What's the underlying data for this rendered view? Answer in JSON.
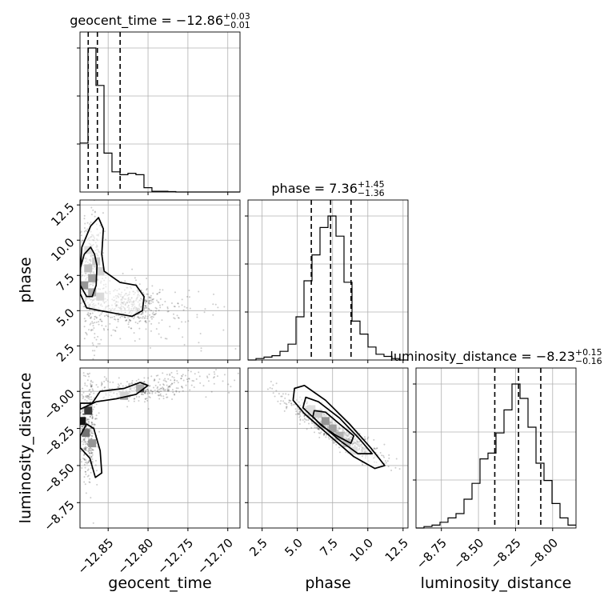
{
  "chart_data": {
    "type": "corner",
    "params": [
      "geocent_time",
      "phase",
      "luminosity_distance"
    ],
    "axes_labels": {
      "geocent_time": "geocent_time",
      "phase": "phase",
      "luminosity_distance": "luminosity_distance"
    },
    "ranges": {
      "geocent_time": [
        -12.8853,
        -12.6847
      ],
      "phase": [
        1.5,
        12.85
      ],
      "luminosity_distance": [
        -8.921,
        -7.8425
      ]
    },
    "ticks": {
      "geocent_time": [
        {
          "v": -12.85,
          "label": "−12.85"
        },
        {
          "v": -12.8,
          "label": "−12.80"
        },
        {
          "v": -12.75,
          "label": "−12.75"
        },
        {
          "v": -12.7,
          "label": "−12.70"
        }
      ],
      "phase": [
        {
          "v": 2.5,
          "label": "2.5"
        },
        {
          "v": 5.0,
          "label": "5.0"
        },
        {
          "v": 7.5,
          "label": "7.5"
        },
        {
          "v": 10.0,
          "label": "10.0"
        },
        {
          "v": 12.5,
          "label": "12.5"
        }
      ],
      "luminosity_distance": [
        {
          "v": -8.75,
          "label": "−8.75"
        },
        {
          "v": -8.5,
          "label": "−8.50"
        },
        {
          "v": -8.25,
          "label": "−8.25"
        },
        {
          "v": -8.0,
          "label": "−8.00"
        }
      ]
    },
    "titles": {
      "geocent_time": {
        "main": "geocent_time = −12.86",
        "sup": "+0.03",
        "sub": "−0.01"
      },
      "phase": {
        "main": "phase = 7.36",
        "sup": "+1.45",
        "sub": "−1.36"
      },
      "luminosity_distance": {
        "main": "luminosity_distance = −8.23",
        "sup": "+0.15",
        "sub": "−0.16"
      }
    },
    "quantiles": {
      "geocent_time": [
        -12.875,
        -12.8635,
        -12.835
      ],
      "phase": [
        5.99,
        7.36,
        8.81
      ],
      "luminosity_distance": [
        -8.39,
        -8.23,
        -8.08
      ]
    },
    "histograms": {
      "geocent_time": {
        "edges": [
          -12.8853,
          -12.8753,
          -12.8653,
          -12.8552,
          -12.8452,
          -12.8352,
          -12.8252,
          -12.8152,
          -12.8051,
          -12.7951,
          -12.7851,
          -12.7751,
          -12.7651,
          -12.755,
          -12.745,
          -12.735,
          -12.725,
          -12.7149,
          -12.7049,
          -12.6949,
          -12.6847
        ],
        "counts": [
          0.34,
          1.0,
          0.74,
          0.27,
          0.14,
          0.12,
          0.13,
          0.12,
          0.03,
          0.005,
          0.005,
          0.003,
          0,
          0,
          0,
          0,
          0,
          0,
          0,
          0
        ]
      },
      "phase": {
        "edges": [
          1.5,
          2.0675,
          2.635,
          3.2025,
          3.77,
          4.3375,
          4.905,
          5.4725,
          6.04,
          6.6075,
          7.175,
          7.7425,
          8.31,
          8.8775,
          9.445,
          10.0125,
          10.58,
          11.1475,
          11.715,
          12.2825,
          12.85
        ],
        "counts": [
          0,
          0.01,
          0.02,
          0.03,
          0.06,
          0.11,
          0.3,
          0.55,
          0.73,
          0.92,
          1.0,
          0.86,
          0.54,
          0.27,
          0.18,
          0.09,
          0.04,
          0.025,
          0.01,
          0
        ]
      },
      "luminosity_distance": {
        "edges": [
          -8.921,
          -8.8671,
          -8.8131,
          -8.7592,
          -8.7053,
          -8.6514,
          -8.5974,
          -8.5435,
          -8.4896,
          -8.4357,
          -8.3817,
          -8.3278,
          -8.2739,
          -8.2199,
          -8.166,
          -8.1121,
          -8.0582,
          -8.0042,
          -7.9503,
          -7.8964,
          -7.8425
        ],
        "counts": [
          0,
          0.01,
          0.02,
          0.04,
          0.07,
          0.1,
          0.2,
          0.31,
          0.48,
          0.52,
          0.66,
          0.82,
          1.0,
          0.9,
          0.7,
          0.45,
          0.33,
          0.17,
          0.07,
          0.02
        ]
      }
    },
    "pairs": [
      {
        "x": "geocent_time",
        "y": "phase",
        "density": [
          {
            "x": -12.88,
            "y": 6.8,
            "d": 1.0
          },
          {
            "x": -12.87,
            "y": 7.3,
            "d": 0.9
          },
          {
            "x": -12.87,
            "y": 6.3,
            "d": 0.8
          },
          {
            "x": -12.875,
            "y": 8.0,
            "d": 0.6
          },
          {
            "x": -12.865,
            "y": 8.5,
            "d": 0.5
          },
          {
            "x": -12.86,
            "y": 7.8,
            "d": 0.4
          },
          {
            "x": -12.86,
            "y": 6.0,
            "d": 0.35
          },
          {
            "x": -12.875,
            "y": 9.3,
            "d": 0.3
          }
        ],
        "scatter_clusters": [
          {
            "cx": -12.87,
            "cy": 7.2,
            "sx": 0.008,
            "sy": 2.2,
            "n": 420
          },
          {
            "cx": -12.82,
            "cy": 5.4,
            "sx": 0.02,
            "sy": 0.8,
            "n": 360
          },
          {
            "cx": -12.78,
            "cy": 4.5,
            "sx": 0.04,
            "sy": 1.1,
            "n": 90
          }
        ],
        "contours": [
          [
            [
              -12.885,
              6.2
            ],
            [
              -12.877,
              5.2
            ],
            [
              -12.86,
              5.0
            ],
            [
              -12.84,
              4.8
            ],
            [
              -12.82,
              4.6
            ],
            [
              -12.807,
              5.0
            ],
            [
              -12.805,
              6.0
            ],
            [
              -12.815,
              6.8
            ],
            [
              -12.835,
              7.0
            ],
            [
              -12.855,
              7.8
            ],
            [
              -12.858,
              9.0
            ],
            [
              -12.856,
              10.8
            ],
            [
              -12.862,
              11.6
            ],
            [
              -12.872,
              11.0
            ],
            [
              -12.883,
              9.5
            ],
            [
              -12.885,
              7.8
            ]
          ],
          [
            [
              -12.885,
              6.8
            ],
            [
              -12.877,
              6.0
            ],
            [
              -12.87,
              6.0
            ],
            [
              -12.865,
              6.8
            ],
            [
              -12.864,
              8.2
            ],
            [
              -12.867,
              9.0
            ],
            [
              -12.872,
              9.5
            ],
            [
              -12.88,
              9.0
            ],
            [
              -12.885,
              8.0
            ]
          ]
        ]
      },
      {
        "x": "geocent_time",
        "y": "luminosity_distance",
        "density": [
          {
            "x": -12.883,
            "y": -8.2,
            "d": 1.0
          },
          {
            "x": -12.875,
            "y": -8.13,
            "d": 0.85
          },
          {
            "x": -12.878,
            "y": -8.28,
            "d": 0.6
          },
          {
            "x": -12.87,
            "y": -8.35,
            "d": 0.45
          },
          {
            "x": -12.81,
            "y": -7.98,
            "d": 0.8
          },
          {
            "x": -12.83,
            "y": -8.03,
            "d": 0.4
          }
        ],
        "scatter_clusters": [
          {
            "cx": -12.876,
            "cy": -8.25,
            "sx": 0.006,
            "sy": 0.18,
            "n": 380
          },
          {
            "cx": -12.81,
            "cy": -7.99,
            "sx": 0.03,
            "sy": 0.035,
            "n": 280
          },
          {
            "cx": -12.74,
            "cy": -7.9,
            "sx": 0.03,
            "sy": 0.03,
            "n": 60
          }
        ],
        "contours": [
          [
            [
              -12.885,
              -8.12
            ],
            [
              -12.865,
              -8.07
            ],
            [
              -12.84,
              -8.05
            ],
            [
              -12.815,
              -8.02
            ],
            [
              -12.8,
              -7.96
            ],
            [
              -12.81,
              -7.94
            ],
            [
              -12.83,
              -7.98
            ],
            [
              -12.86,
              -8.0
            ],
            [
              -12.87,
              -8.08
            ],
            [
              -12.885,
              -8.08
            ]
          ],
          [
            [
              -12.885,
              -8.3
            ],
            [
              -12.877,
              -8.22
            ],
            [
              -12.868,
              -8.25
            ],
            [
              -12.86,
              -8.4
            ],
            [
              -12.858,
              -8.55
            ],
            [
              -12.866,
              -8.58
            ],
            [
              -12.873,
              -8.45
            ],
            [
              -12.885,
              -8.38
            ]
          ]
        ]
      },
      {
        "x": "phase",
        "y": "luminosity_distance",
        "density": [
          {
            "x": 6.5,
            "y": -8.15,
            "d": 0.5
          },
          {
            "x": 7.0,
            "y": -8.2,
            "d": 1.0
          },
          {
            "x": 7.5,
            "y": -8.25,
            "d": 0.9
          },
          {
            "x": 8.0,
            "y": -8.3,
            "d": 0.75
          },
          {
            "x": 8.5,
            "y": -8.35,
            "d": 0.6
          },
          {
            "x": 6.0,
            "y": -8.12,
            "d": 0.3
          },
          {
            "x": 9.0,
            "y": -8.4,
            "d": 0.3
          }
        ],
        "scatter_clusters": [
          {
            "cx": 7.6,
            "cy": -8.26,
            "sx": 1.6,
            "sy": 0.1,
            "n": 900,
            "corr": -0.92
          }
        ],
        "contours": [
          [
            [
              4.8,
              -7.98
            ],
            [
              5.5,
              -7.96
            ],
            [
              7.0,
              -8.06
            ],
            [
              8.7,
              -8.22
            ],
            [
              10.2,
              -8.38
            ],
            [
              11.2,
              -8.5
            ],
            [
              10.5,
              -8.52
            ],
            [
              9.0,
              -8.44
            ],
            [
              7.3,
              -8.3
            ],
            [
              5.5,
              -8.15
            ],
            [
              4.7,
              -8.06
            ]
          ],
          [
            [
              5.6,
              -8.04
            ],
            [
              6.5,
              -8.07
            ],
            [
              8.0,
              -8.18
            ],
            [
              9.4,
              -8.32
            ],
            [
              10.3,
              -8.42
            ],
            [
              9.3,
              -8.42
            ],
            [
              8.0,
              -8.33
            ],
            [
              6.4,
              -8.2
            ],
            [
              5.4,
              -8.11
            ]
          ],
          [
            [
              6.2,
              -8.13
            ],
            [
              7.0,
              -8.14
            ],
            [
              8.0,
              -8.22
            ],
            [
              9.0,
              -8.3
            ],
            [
              8.8,
              -8.35
            ],
            [
              7.8,
              -8.3
            ],
            [
              6.7,
              -8.23
            ],
            [
              6.1,
              -8.17
            ]
          ]
        ]
      }
    ]
  }
}
